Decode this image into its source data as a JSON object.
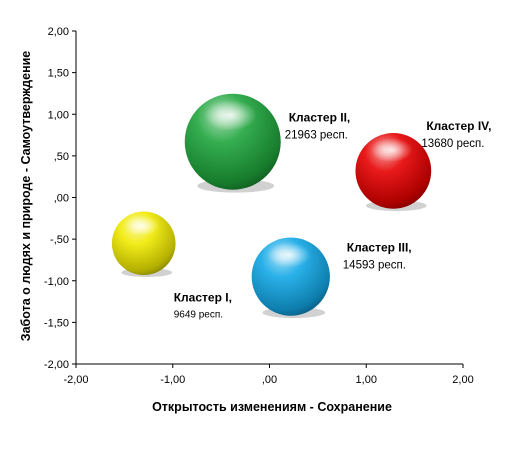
{
  "chart_data": {
    "type": "bubble",
    "xlabel": "Открытость изменениям - Сохранение",
    "ylabel": "Забота о людях и природе - Самоутверждение",
    "xlim": [
      -2.0,
      2.0
    ],
    "ylim": [
      -2.0,
      2.0
    ],
    "x_ticks": [
      "-2,00",
      "-1,00",
      ",00",
      "1,00",
      "2,00"
    ],
    "y_ticks": [
      "2,00",
      "1,50",
      "1,00",
      ",50",
      ",00",
      "-,50",
      "-1,00",
      "-1,50",
      "-2,00"
    ],
    "grid": false,
    "series": [
      {
        "name": "Кластер I,",
        "count_label": "9649 респ.",
        "x": -1.3,
        "y": -0.55,
        "size": 9649,
        "color": "#f0ea00"
      },
      {
        "name": "Кластер II,",
        "count_label": "21963 респ.",
        "x": -0.38,
        "y": 0.67,
        "size": 21963,
        "color": "#1fa53c"
      },
      {
        "name": "Кластер III,",
        "count_label": "14593 респ.",
        "x": 0.22,
        "y": -0.95,
        "size": 14593,
        "color": "#12a8e6"
      },
      {
        "name": "Кластер IV,",
        "count_label": "13680 респ.",
        "x": 1.28,
        "y": 0.32,
        "size": 13680,
        "color": "#e60000"
      }
    ]
  }
}
